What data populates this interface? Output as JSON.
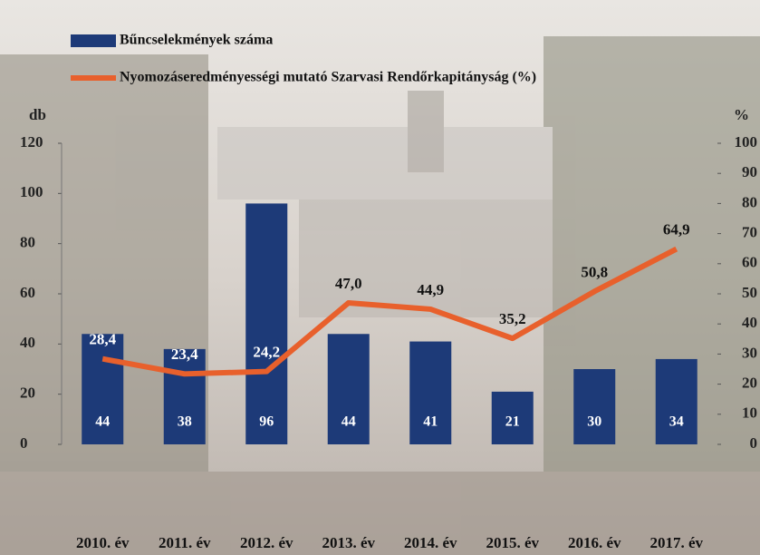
{
  "chart_data": {
    "type": "bar-line",
    "categories": [
      "2010. év",
      "2011. év",
      "2012. év",
      "2013. év",
      "2014. év",
      "2015. év",
      "2016. év",
      "2017. év"
    ],
    "y_label": "db",
    "y2_label": "%",
    "ylim": [
      0,
      120
    ],
    "yticks": [
      0,
      20,
      40,
      60,
      80,
      100,
      120
    ],
    "y2lim": [
      0,
      100
    ],
    "y2ticks": [
      0,
      10,
      20,
      30,
      40,
      50,
      60,
      70,
      80,
      90,
      100
    ],
    "series": [
      {
        "name": "Bűncselekmények száma",
        "type": "bar",
        "color": "#1d3a78",
        "values": [
          44,
          38,
          96,
          44,
          41,
          21,
          30,
          34
        ]
      },
      {
        "name": "Nyomozáseredményességi mutató Szarvasi Rendőrkapitányság (%)",
        "type": "line",
        "axis": "y2",
        "color": "#e8602c",
        "values": [
          28.4,
          23.4,
          24.2,
          47.0,
          44.9,
          35.2,
          50.8,
          64.9
        ],
        "value_labels": [
          "28,4",
          "23,4",
          "24,2",
          "47,0",
          "44,9",
          "35,2",
          "50,8",
          "64,9"
        ]
      }
    ]
  }
}
